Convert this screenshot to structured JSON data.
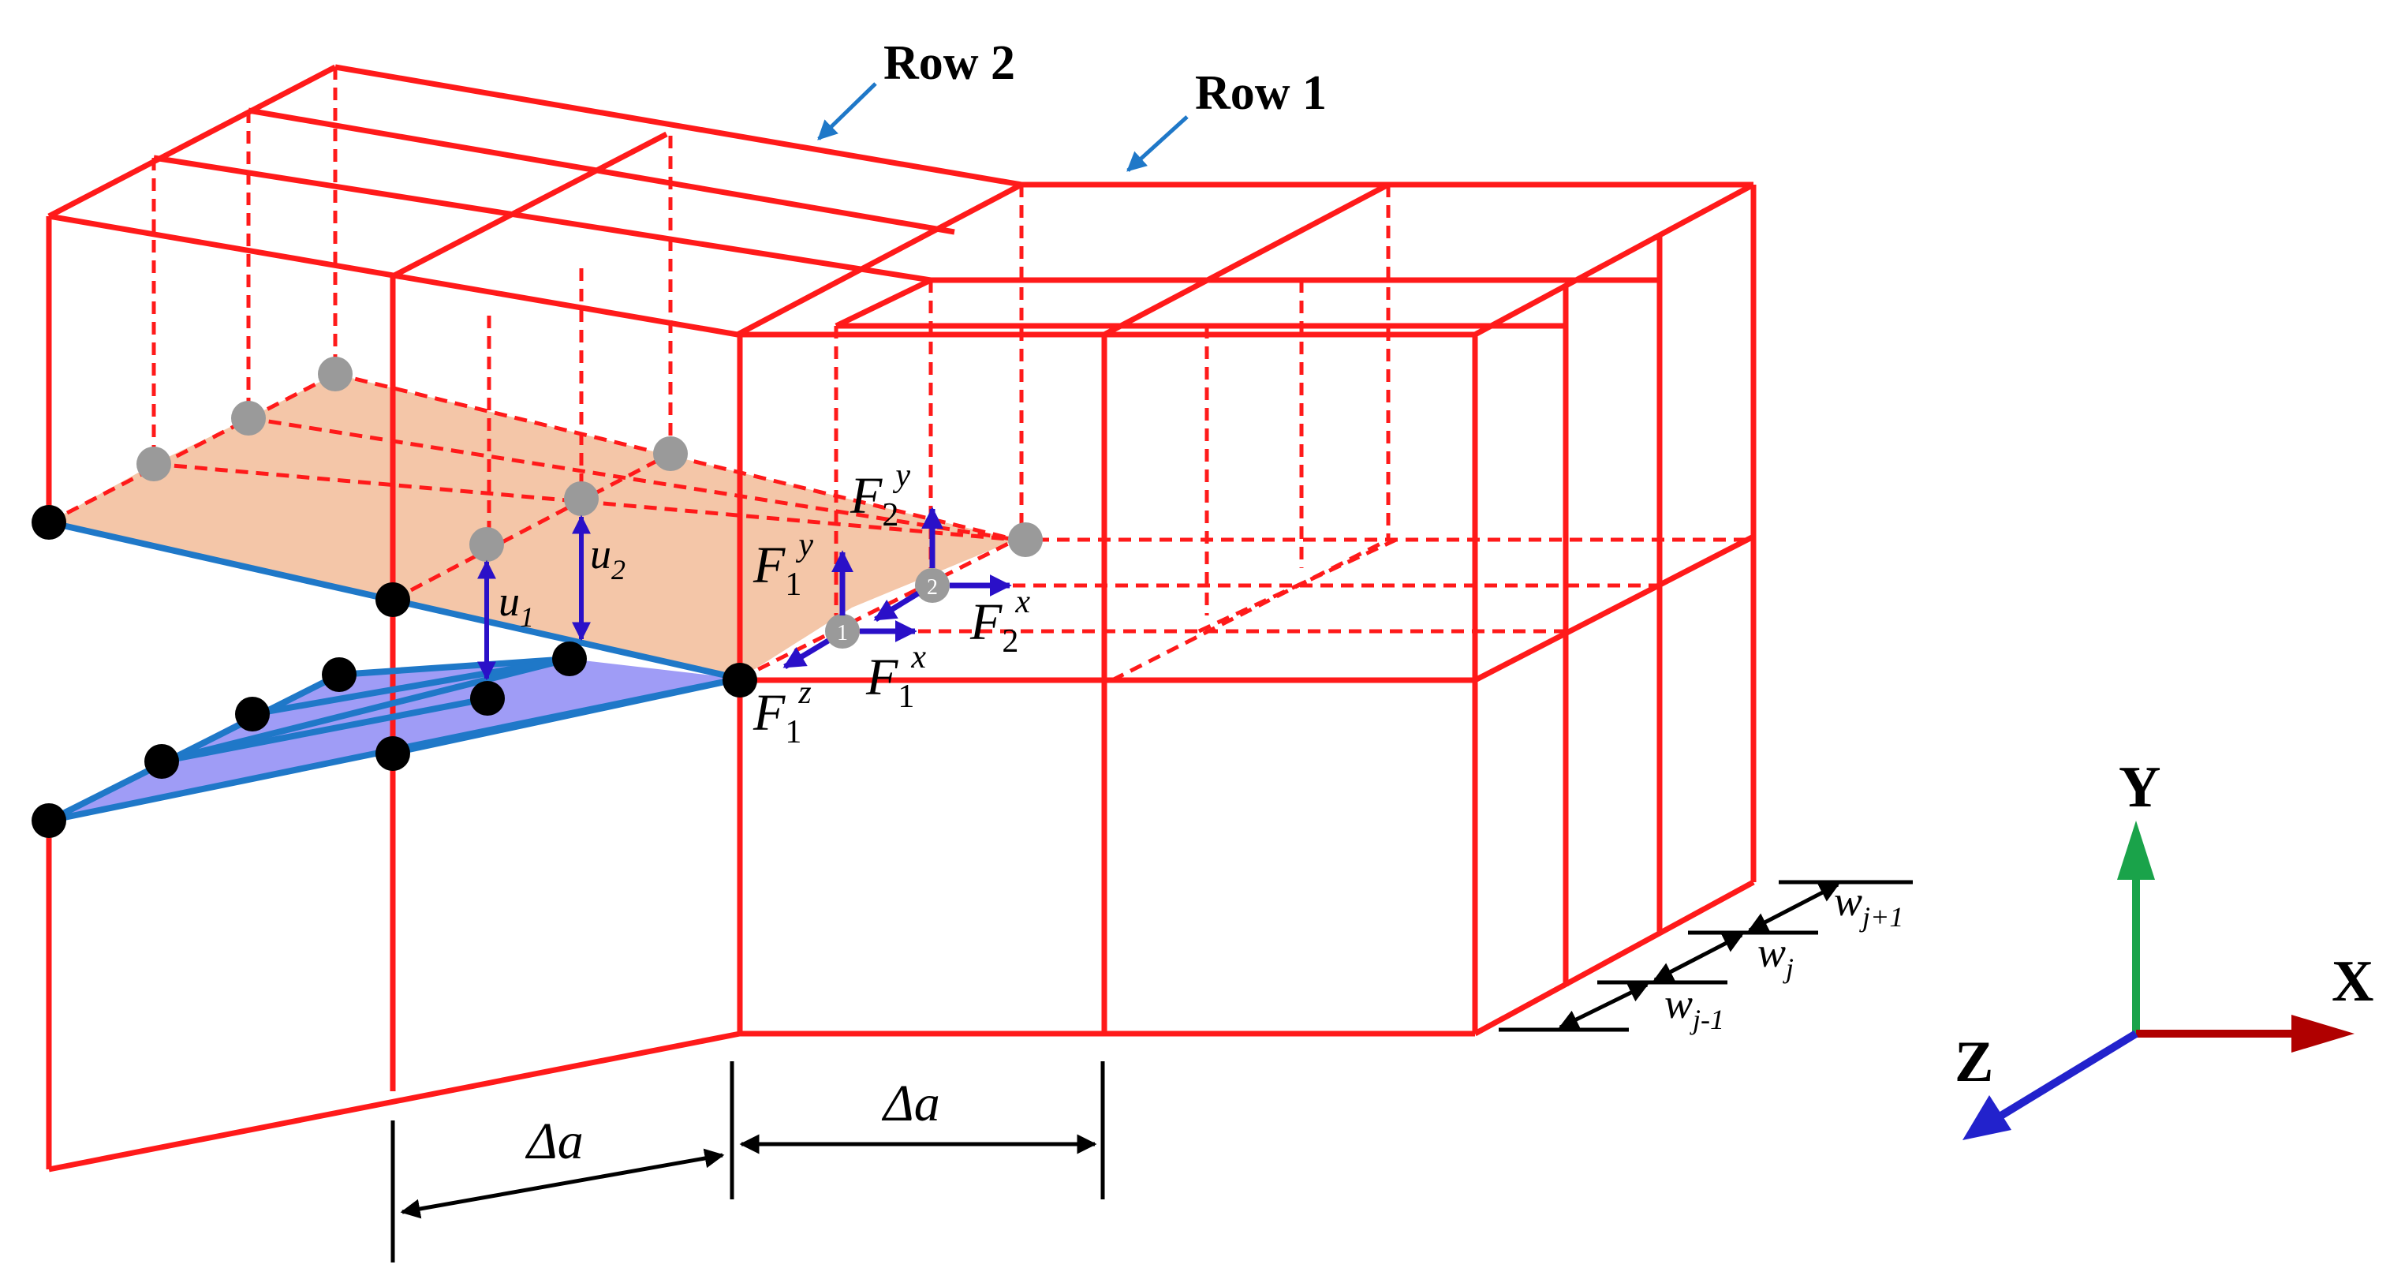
{
  "labels": {
    "row2": "Row 2",
    "row1": "Row 1",
    "delta_a": "Δa",
    "axis_y": "Y",
    "axis_x": "X",
    "axis_z": "Z"
  },
  "symbols": {
    "F": "F",
    "u": "u",
    "w": "w",
    "sub_1": "1",
    "sub_2": "2",
    "sup_x": "x",
    "sup_y": "y",
    "sup_z": "z",
    "sub_j": "j",
    "sub_j_minus": "j-1",
    "sub_j_plus": "j+1",
    "node_1": "1",
    "node_2": "2"
  },
  "colors": {
    "mesh": "#ff1a1a",
    "crack_face_fill": "#f4c6a8",
    "open_crack_fill": "#9f9cf6",
    "crack_front": "#1f78c8",
    "force_arrow": "#2a10c8",
    "callout_arrow": "#1f78c8",
    "node_black": "#000000",
    "node_gray": "#9a9a9a",
    "axis_y": "#1aa34a",
    "axis_x": "#b00000",
    "axis_z": "#2222cc"
  }
}
